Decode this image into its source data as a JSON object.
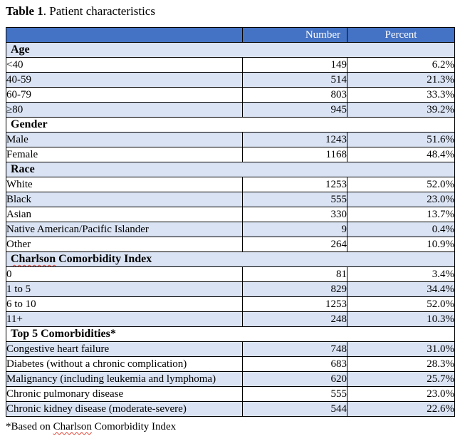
{
  "title": {
    "bold": "Table 1",
    "rest": ". Patient characteristics"
  },
  "columns": {
    "number": "Number",
    "percent": "Percent"
  },
  "sections": [
    {
      "header_parts": [
        {
          "text": "Age",
          "squiggle": false
        }
      ],
      "rows": [
        {
          "label": "<40",
          "number": "149",
          "percent": "6.2%"
        },
        {
          "label": "40-59",
          "number": "514",
          "percent": "21.3%"
        },
        {
          "label": "60-79",
          "number": "803",
          "percent": "33.3%"
        },
        {
          "label": "≥80",
          "number": "945",
          "percent": "39.2%"
        }
      ]
    },
    {
      "header_parts": [
        {
          "text": "Gender",
          "squiggle": false
        }
      ],
      "rows": [
        {
          "label": "Male",
          "number": "1243",
          "percent": "51.6%"
        },
        {
          "label": "Female",
          "number": "1168",
          "percent": "48.4%"
        }
      ]
    },
    {
      "header_parts": [
        {
          "text": "Race",
          "squiggle": false
        }
      ],
      "rows": [
        {
          "label": "White",
          "number": "1253",
          "percent": "52.0%"
        },
        {
          "label": "Black",
          "number": "555",
          "percent": "23.0%"
        },
        {
          "label": "Asian",
          "number": "330",
          "percent": "13.7%"
        },
        {
          "label": "Native American/Pacific Islander",
          "number": "9",
          "percent": "0.4%"
        },
        {
          "label": "Other",
          "number": "264",
          "percent": "10.9%"
        }
      ]
    },
    {
      "header_parts": [
        {
          "text": "Charlson",
          "squiggle": true
        },
        {
          "text": " Comorbidity Index",
          "squiggle": false
        }
      ],
      "rows": [
        {
          "label": "0",
          "number": "81",
          "percent": "3.4%"
        },
        {
          "label": "1 to 5",
          "number": "829",
          "percent": "34.4%"
        },
        {
          "label": "6 to 10",
          "number": "1253",
          "percent": "52.0%"
        },
        {
          "label": "11+",
          "number": "248",
          "percent": "10.3%"
        }
      ]
    },
    {
      "header_parts": [
        {
          "text": "Top 5 Comorbidities*",
          "squiggle": false
        }
      ],
      "rows": [
        {
          "label": "Congestive heart failure",
          "number": "748",
          "percent": "31.0%"
        },
        {
          "label": "Diabetes (without a chronic complication)",
          "number": "683",
          "percent": "28.3%"
        },
        {
          "label": "Malignancy (including leukemia and lymphoma)",
          "number": "620",
          "percent": "25.7%"
        },
        {
          "label": "Chronic pulmonary disease",
          "number": "555",
          "percent": "23.0%"
        },
        {
          "label": "Chronic kidney disease (moderate-severe)",
          "number": "544",
          "percent": "22.6%"
        }
      ]
    }
  ],
  "footnote_parts": [
    {
      "text": "*Based on ",
      "squiggle": false
    },
    {
      "text": "Charlson",
      "squiggle": true
    },
    {
      "text": " Comorbidity Index",
      "squiggle": false
    }
  ],
  "colors": {
    "header_bg": "#4472c4",
    "header_text": "#ffffff",
    "band_bg": "#dae3f3",
    "border": "#000000",
    "squiggle": "#e23d2e"
  }
}
